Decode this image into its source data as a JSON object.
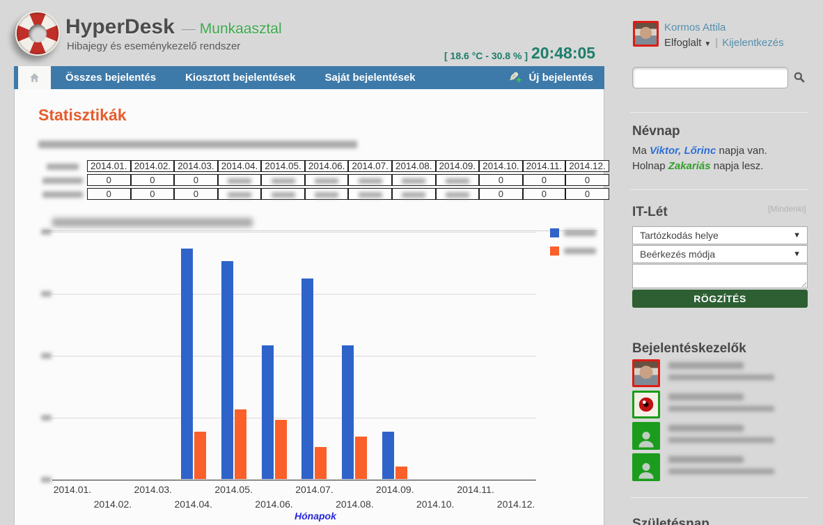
{
  "header": {
    "app_name": "HyperDesk",
    "dash": "—",
    "workspace": "Munkaasztal",
    "subtitle": "Hibajegy és eseménykezelő rendszer",
    "environment": "[ 18.6 °C - 30.8 % ]",
    "clock": "20:48:05",
    "user": {
      "name": "Kormos Attila",
      "status": "Elfoglalt",
      "logout": "Kijelentkezés",
      "separator": "|"
    }
  },
  "nav": {
    "tabs": [
      "Összes bejelentés",
      "Kiosztott bejelentések",
      "Saját bejelentések"
    ],
    "new_report": "Új bejelentés"
  },
  "main": {
    "title": "Statisztikák",
    "intro_redacted": true,
    "table": {
      "columns": [
        "2014.01.",
        "2014.02.",
        "2014.03.",
        "2014.04.",
        "2014.05.",
        "2014.06.",
        "2014.07.",
        "2014.08.",
        "2014.09.",
        "2014.10.",
        "2014.11.",
        "2014.12."
      ],
      "row_labels_redacted": true,
      "rows": [
        {
          "values": [
            "0",
            "0",
            "0",
            null,
            null,
            null,
            null,
            null,
            null,
            "0",
            "0",
            "0"
          ]
        },
        {
          "values": [
            "0",
            "0",
            "0",
            null,
            null,
            null,
            null,
            null,
            null,
            "0",
            "0",
            "0"
          ]
        }
      ]
    }
  },
  "chart_data": {
    "type": "bar",
    "title_redacted": true,
    "categories": [
      "2014.01.",
      "2014.02.",
      "2014.03.",
      "2014.04.",
      "2014.05.",
      "2014.06.",
      "2014.07.",
      "2014.08.",
      "2014.09.",
      "2014.10.",
      "2014.11.",
      "2014.12."
    ],
    "series": [
      {
        "name": "",
        "name_redacted": true,
        "color": "#2f63c9",
        "values": [
          0,
          0,
          0,
          93,
          88,
          54,
          81,
          54,
          19,
          0,
          0,
          0
        ]
      },
      {
        "name": "",
        "name_redacted": true,
        "color": "#fb5f2a",
        "values": [
          0,
          0,
          0,
          19,
          28,
          24,
          13,
          17,
          5,
          0,
          0,
          0
        ]
      }
    ],
    "xlabel": "Hónapok",
    "ylabel": "",
    "ylim": [
      0,
      100
    ],
    "y_tick_labels_redacted": true,
    "gridlines": [
      0,
      25,
      50,
      75,
      100
    ],
    "legend_position": "right",
    "legend_labels_redacted": true
  },
  "sidebar": {
    "search": {
      "value": "",
      "placeholder": ""
    },
    "nevnap": {
      "title": "Névnap",
      "today_prefix": "Ma ",
      "today_names": "Viktor, Lőrinc",
      "today_suffix": " napja van.",
      "tomorrow_prefix": "Holnap ",
      "tomorrow_name": "Zakariás",
      "tomorrow_suffix": " napja lesz."
    },
    "itlet": {
      "title": "IT-Lét",
      "scope_link": "[Mindenki]",
      "select_location": "Tartózkodás helye",
      "select_arrival": "Beérkezés módja",
      "note_value": "",
      "submit": "RÖGZÍTÉS"
    },
    "handlers": {
      "title": "Bejelentéskezelők",
      "items": [
        {
          "avatar": "male-photo-avatar",
          "name_redacted": true,
          "detail_redacted": true
        },
        {
          "avatar": "red-eye-avatar",
          "name_redacted": true,
          "detail_redacted": true
        },
        {
          "avatar": "person-silhouette-avatar",
          "name_redacted": true,
          "detail_redacted": true
        },
        {
          "avatar": "person-silhouette-avatar",
          "name_redacted": true,
          "detail_redacted": true
        }
      ]
    },
    "bottom_heading_partial": "Születésnap"
  }
}
